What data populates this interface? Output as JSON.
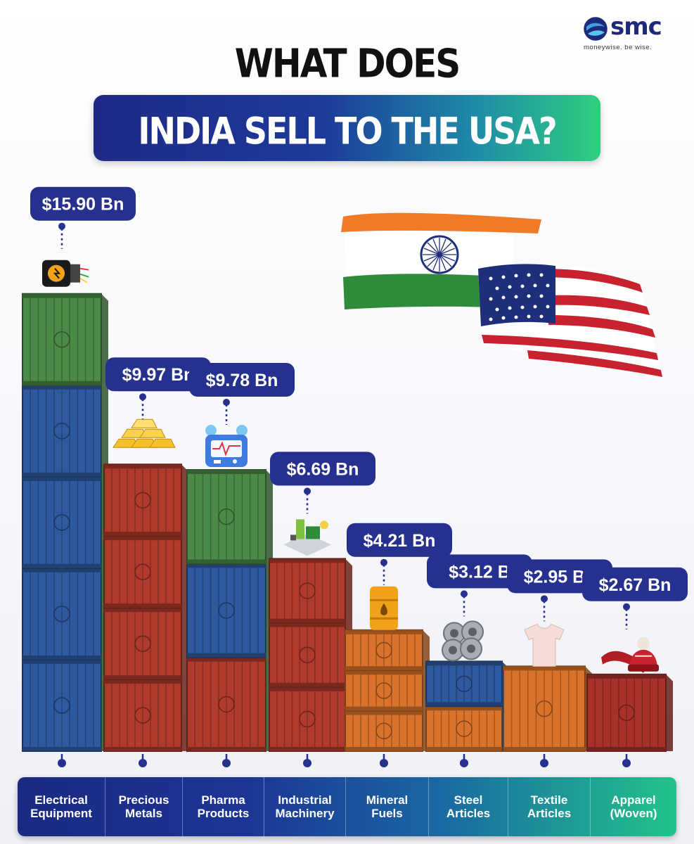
{
  "brand": {
    "name": "smc",
    "tagline": "moneywise. be wise."
  },
  "header": {
    "title_line1": "WHAT DOES",
    "title_line2": "INDIA SELL TO THE USA?"
  },
  "chart_data": {
    "type": "bar",
    "title": "WHAT DOES INDIA SELL TO THE USA?",
    "categories": [
      "Electrical Equipment",
      "Precious Metals",
      "Pharma Products",
      "Industrial Machinery",
      "Mineral Fuels",
      "Steel Articles",
      "Textile Articles",
      "Apparel (Woven)"
    ],
    "category_lines": [
      [
        "Electrical",
        "Equipment"
      ],
      [
        "Precious",
        "Metals"
      ],
      [
        "Pharma",
        "Products"
      ],
      [
        "Industrial",
        "Machinery"
      ],
      [
        "Mineral",
        "Fuels"
      ],
      [
        "Steel",
        "Articles"
      ],
      [
        "Textile",
        "Articles"
      ],
      [
        "Apparel",
        "(Woven)"
      ]
    ],
    "values": [
      15.9,
      9.97,
      9.78,
      6.69,
      4.21,
      3.12,
      2.95,
      2.67
    ],
    "value_labels": [
      "$15.90 Bn",
      "$9.97 Bn",
      "$9.78 Bn",
      "$6.69 Bn",
      "$4.21 Bn",
      "$3.12 B",
      "$2.95 Bn",
      "$2.67 Bn"
    ],
    "icons": [
      "electrical-cable-icon",
      "gold-bars-icon",
      "medical-monitor-icon",
      "machinery-icon",
      "oil-barrel-icon",
      "steel-coils-icon",
      "t-shirt-icon",
      "woolen-hat-scarf-icon"
    ],
    "unit": "USD Bn",
    "legend": "none"
  },
  "colors": {
    "navy": "#1f2a86",
    "pill": "#25308f",
    "teal_end": "#2fcf7e",
    "container_green": "#4c8a48",
    "container_blue": "#2f5aa0",
    "container_red": "#b03a2c",
    "container_orange": "#d9722a",
    "container_dark_red": "#a8322a",
    "india_saffron": "#f07a26",
    "india_green": "#2e8b3a",
    "usa_red": "#c8222e",
    "usa_blue": "#1f2e7a"
  }
}
